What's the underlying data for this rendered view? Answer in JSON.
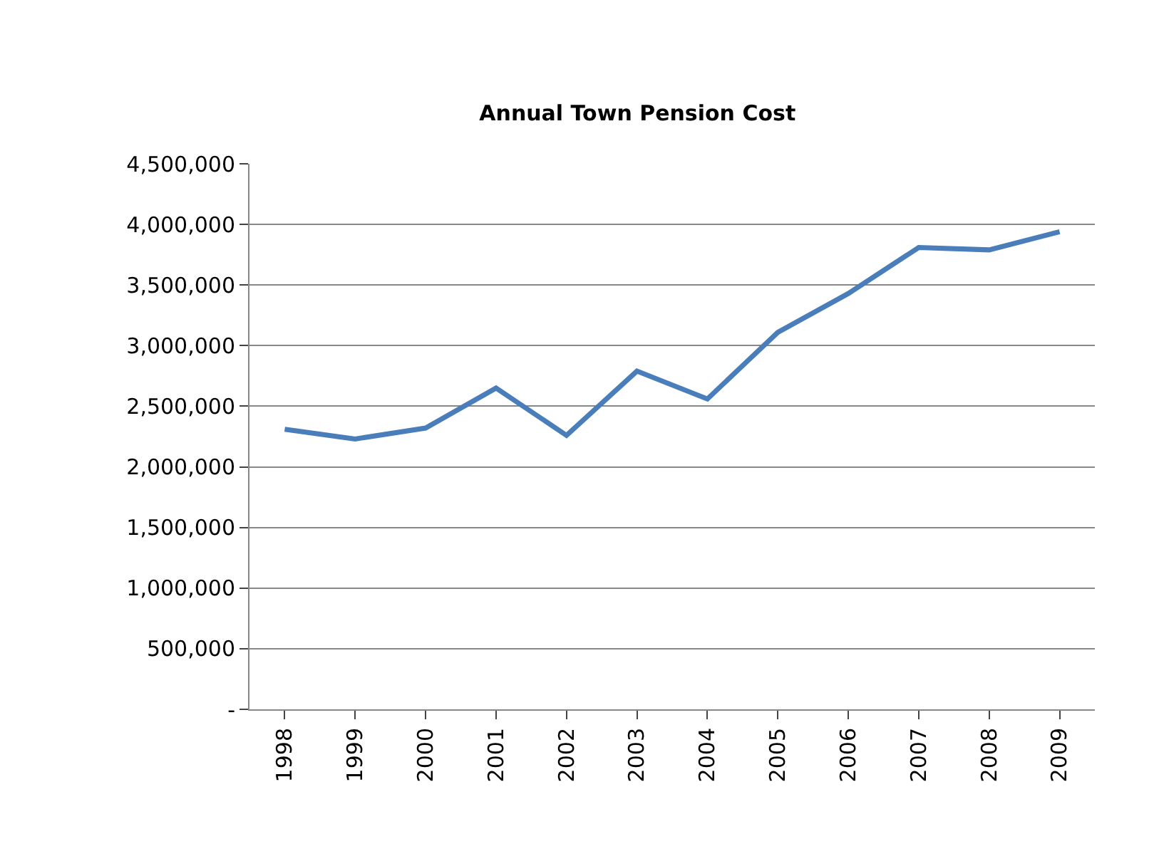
{
  "chart_data": {
    "type": "line",
    "title": "Annual Town Pension Cost",
    "categories": [
      "1998",
      "1999",
      "2000",
      "2001",
      "2002",
      "2003",
      "2004",
      "2005",
      "2006",
      "2007",
      "2008",
      "2009"
    ],
    "series": [
      {
        "color": "#4a7ebb",
        "values": [
          2310000,
          2230000,
          2320000,
          2650000,
          2260000,
          2790000,
          2560000,
          3110000,
          3430000,
          3810000,
          3790000,
          3940000
        ]
      }
    ],
    "ylim": [
      0,
      4500000
    ],
    "yticks": [
      {
        "value": 0,
        "label": "-"
      },
      {
        "value": 500000,
        "label": "500,000"
      },
      {
        "value": 1000000,
        "label": "1,000,000"
      },
      {
        "value": 1500000,
        "label": "1,500,000"
      },
      {
        "value": 2000000,
        "label": "2,000,000"
      },
      {
        "value": 2500000,
        "label": "2,500,000"
      },
      {
        "value": 3000000,
        "label": "3,000,000"
      },
      {
        "value": 3500000,
        "label": "3,500,000"
      },
      {
        "value": 4000000,
        "label": "4,000,000"
      },
      {
        "value": 4500000,
        "label": "4,500,000"
      }
    ],
    "grid": "y",
    "marker": "none",
    "line_style": "solid"
  }
}
